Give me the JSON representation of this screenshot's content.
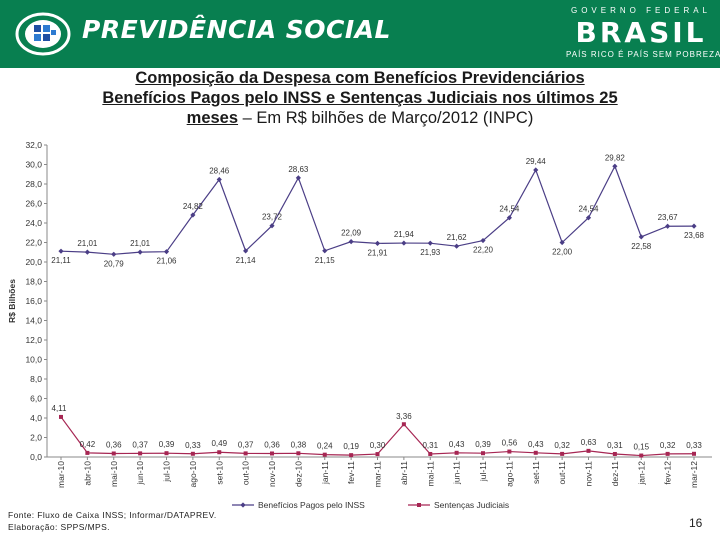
{
  "header": {
    "title": "PREVIDÊNCIA SOCIAL",
    "gov_top": "GOVERNO FEDERAL",
    "gov_word": "BRASIL",
    "gov_slogan": "PAÍS RICO É PAÍS SEM POBREZA",
    "brand_color": "#087f50",
    "logo_icon": "previdencia-logo-icon"
  },
  "slide_title": {
    "line1": "Composição da Despesa com Benefícios Previdenciários",
    "line2": "Benefícios Pagos pelo INSS e Sentenças Judiciais nos últimos 25",
    "line3_bold": "meses",
    "line3_rest": " – Em R$ bilhões de Março/2012 (INPC)"
  },
  "chart_data": {
    "type": "line",
    "title": "",
    "xlabel": "",
    "ylabel": "R$ Bilhões",
    "ylim": [
      0,
      32
    ],
    "ytick_step": 2,
    "grid": false,
    "legend_position": "bottom",
    "categories": [
      "mar-10",
      "abr-10",
      "mai-10",
      "jun-10",
      "jul-10",
      "ago-10",
      "set-10",
      "out-10",
      "nov-10",
      "dez-10",
      "jan-11",
      "fev-11",
      "mar-11",
      "abr-11",
      "mai-11",
      "jun-11",
      "jul-11",
      "ago-11",
      "set-11",
      "out-11",
      "nov-11",
      "dez-11",
      "jan-12",
      "fev-12",
      "mar-12"
    ],
    "series": [
      {
        "name": "Benefícios Pagos pelo INSS",
        "color": "#4b3e86",
        "marker": "diamond",
        "values": [
          21.11,
          21.01,
          20.79,
          21.01,
          21.06,
          24.82,
          28.46,
          21.14,
          23.72,
          28.63,
          21.15,
          22.09,
          21.91,
          21.94,
          21.93,
          21.62,
          22.2,
          24.54,
          29.44,
          22.0,
          24.54,
          29.82,
          22.58,
          23.67,
          23.68
        ],
        "labels": [
          "21,11",
          "21,01",
          "20,79",
          "21,01",
          "21,06",
          "24,82",
          "28,46",
          "21,14",
          "23,72",
          "28,63",
          "21,15",
          "22,09",
          "21,91",
          "21,94",
          "21,93",
          "21,62",
          "22,20",
          "24,54",
          "29,44",
          "22,00",
          "24,54",
          "29,82",
          "22,58",
          "23,67",
          "23,68"
        ]
      },
      {
        "name": "Sentenças Judiciais",
        "color": "#a62653",
        "marker": "square",
        "values": [
          4.11,
          0.42,
          0.36,
          0.37,
          0.39,
          0.33,
          0.49,
          0.37,
          0.36,
          0.38,
          0.24,
          0.19,
          0.3,
          3.36,
          0.31,
          0.43,
          0.39,
          0.56,
          0.43,
          0.32,
          0.63,
          0.31,
          0.15,
          0.32,
          0.33
        ],
        "labels": [
          "4,11",
          "0,42",
          "0,36",
          "0,37",
          "0,39",
          "0,33",
          "0,49",
          "0,37",
          "0,36",
          "0,38",
          "0,24",
          "0,19",
          "0,30",
          "3,36",
          "0,31",
          "0,43",
          "0,39",
          "0,56",
          "0,43",
          "0,32",
          "0,63",
          "0,31",
          "0,15",
          "0,32",
          "0,33"
        ]
      }
    ]
  },
  "footer": {
    "source_line1": "Fonte: Fluxo de Caixa INSS; Informar/DATAPREV.",
    "source_line2": "Elaboração: SPPS/MPS.",
    "page_number": "16"
  }
}
